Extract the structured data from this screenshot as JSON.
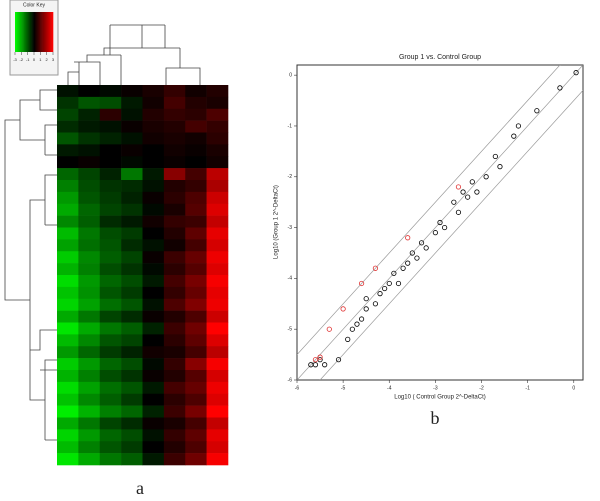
{
  "chart_data": [
    {
      "type": "heatmap",
      "panel": "a",
      "key_title": "Color Key",
      "key_lim": [
        -3,
        3
      ],
      "key_ticks": [
        -3,
        -2,
        -1,
        0,
        1,
        2,
        3
      ],
      "low_color": "#00ff00",
      "mid_color": "#000000",
      "high_color": "#ff0000",
      "z": [
        [
          -0.2,
          0,
          -0.1,
          0.1,
          0.3,
          0.6,
          0.2,
          0.4
        ],
        [
          -0.6,
          -1.0,
          -0.9,
          -0.3,
          0.2,
          0.8,
          0.4,
          0.3
        ],
        [
          -0.8,
          -0.4,
          0.5,
          -0.2,
          0.4,
          0.6,
          0.5,
          0.9
        ],
        [
          -0.5,
          -0.3,
          -0.2,
          0.1,
          0.3,
          0.4,
          0.8,
          0.6
        ],
        [
          -1.0,
          -0.6,
          -0.4,
          -0.2,
          0.2,
          0.3,
          0.2,
          0.5
        ],
        [
          -0.3,
          -0.2,
          0,
          0.1,
          0,
          0.2,
          0.1,
          0.3
        ],
        [
          0,
          0.1,
          0,
          -0.1,
          0,
          0.1,
          0,
          0.2
        ],
        [
          -1.2,
          -0.8,
          -0.4,
          -1.4,
          -0.3,
          1.6,
          0.8,
          2.2
        ],
        [
          -1.5,
          -0.9,
          -0.6,
          -0.5,
          -0.2,
          0.4,
          0.6,
          2.0
        ],
        [
          -1.8,
          -1.0,
          -0.7,
          -0.4,
          0.1,
          0.5,
          0.9,
          2.4
        ],
        [
          -2.0,
          -1.2,
          -0.8,
          -0.6,
          -0.1,
          0.3,
          1.0,
          2.6
        ],
        [
          -1.6,
          -1.1,
          -0.5,
          -0.3,
          0.2,
          0.6,
          0.7,
          2.3
        ],
        [
          -2.2,
          -1.4,
          -0.9,
          -0.7,
          0.0,
          0.4,
          1.1,
          2.7
        ],
        [
          -1.9,
          -1.3,
          -1.0,
          -0.5,
          -0.2,
          0.2,
          0.8,
          2.5
        ],
        [
          -2.4,
          -1.6,
          -1.1,
          -0.8,
          0.1,
          0.7,
          1.2,
          2.8
        ],
        [
          -2.1,
          -1.5,
          -0.9,
          -0.6,
          -0.1,
          0.5,
          1.0,
          2.6
        ],
        [
          -2.6,
          -1.8,
          -1.2,
          -0.9,
          -0.3,
          0.8,
          1.4,
          2.9
        ],
        [
          -2.3,
          -1.7,
          -1.0,
          -0.7,
          0.0,
          0.6,
          1.2,
          2.7
        ],
        [
          -2.5,
          -1.9,
          -1.3,
          -1.0,
          -0.2,
          0.9,
          1.5,
          2.8
        ],
        [
          -2.0,
          -1.4,
          -0.8,
          -0.5,
          0.1,
          0.4,
          0.9,
          2.4
        ],
        [
          -2.7,
          -2.0,
          -1.4,
          -1.1,
          -0.4,
          0.7,
          1.3,
          3.0
        ],
        [
          -2.2,
          -1.6,
          -1.0,
          -0.8,
          0.0,
          0.5,
          1.1,
          2.6
        ],
        [
          -1.8,
          -1.2,
          -0.7,
          -0.4,
          0.2,
          0.3,
          0.8,
          2.2
        ],
        [
          -2.4,
          -1.8,
          -1.2,
          -0.9,
          -0.1,
          0.6,
          1.6,
          2.9
        ],
        [
          -2.1,
          -1.5,
          -0.9,
          -0.6,
          0.1,
          0.4,
          1.0,
          2.5
        ],
        [
          -2.6,
          -1.9,
          -1.3,
          -1.0,
          -0.3,
          0.8,
          1.2,
          2.8
        ],
        [
          -2.3,
          -1.6,
          -1.1,
          -0.7,
          0.0,
          0.5,
          0.9,
          2.6
        ],
        [
          -2.8,
          -2.1,
          -1.5,
          -1.2,
          -0.4,
          0.7,
          1.4,
          3.0
        ],
        [
          -2.0,
          -1.4,
          -0.8,
          -0.5,
          0.1,
          0.3,
          0.8,
          2.3
        ],
        [
          -2.5,
          -1.8,
          -1.2,
          -0.9,
          -0.2,
          0.6,
          1.1,
          2.7
        ],
        [
          -2.2,
          -1.5,
          -1.0,
          -0.7,
          0.0,
          0.4,
          0.9,
          2.5
        ],
        [
          -2.7,
          -2.0,
          -1.4,
          -1.1,
          -0.3,
          0.7,
          1.3,
          2.9
        ]
      ]
    },
    {
      "type": "scatter",
      "panel": "b",
      "title": "Group 1 vs. Control Group",
      "x_label": "Log10 ( Control Group 2^-DeltaCt)",
      "y_label": "Log10 (Group 1 2^-DeltaCt)",
      "xlim": [
        -6,
        0.2
      ],
      "ylim": [
        -6,
        0.2
      ],
      "xticks": [
        -6,
        -5,
        -4,
        -3,
        -2,
        -1,
        0
      ],
      "yticks": [
        -6,
        -5,
        -4,
        -3,
        -2,
        -1,
        0
      ],
      "reference_lines": [
        -0.5,
        0,
        0.5
      ],
      "series": [
        {
          "color": "#000000",
          "x": [
            -5.7,
            -5.6,
            -5.5,
            -5.4,
            -5.1,
            -4.9,
            -4.8,
            -4.7,
            -4.6,
            -4.5,
            -4.5,
            -4.3,
            -4.2,
            -4.1,
            -4.0,
            -3.9,
            -3.8,
            -3.7,
            -3.6,
            -3.5,
            -3.4,
            -3.3,
            -3.2,
            -3.0,
            -2.9,
            -2.8,
            -2.6,
            -2.5,
            -2.4,
            -2.3,
            -2.2,
            -2.1,
            -1.9,
            -1.7,
            -1.6,
            -1.3,
            -1.2,
            -0.8,
            -0.3,
            0.05
          ],
          "y": [
            -5.7,
            -5.7,
            -5.6,
            -5.7,
            -5.6,
            -5.2,
            -5.0,
            -4.9,
            -4.8,
            -4.6,
            -4.4,
            -4.5,
            -4.3,
            -4.2,
            -4.1,
            -3.9,
            -4.1,
            -3.8,
            -3.7,
            -3.5,
            -3.6,
            -3.3,
            -3.4,
            -3.1,
            -2.9,
            -3.0,
            -2.5,
            -2.7,
            -2.3,
            -2.4,
            -2.1,
            -2.3,
            -2.0,
            -1.6,
            -1.8,
            -1.2,
            -1.0,
            -0.7,
            -0.25,
            0.05
          ]
        },
        {
          "color": "#e03030",
          "x": [
            -5.6,
            -5.5,
            -5.3,
            -5.0,
            -4.6,
            -4.3,
            -3.6,
            -2.5
          ],
          "y": [
            -5.6,
            -5.55,
            -5.0,
            -4.6,
            -4.1,
            -3.8,
            -3.2,
            -2.2
          ]
        }
      ]
    }
  ]
}
